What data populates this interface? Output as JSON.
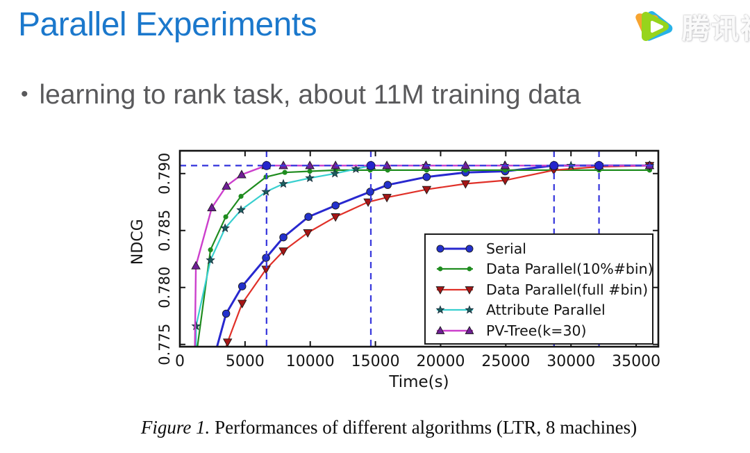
{
  "slide": {
    "title": "Parallel Experiments",
    "bullet_marker": "•",
    "bullet_text": "learning to rank task, about 11M training data",
    "caption_prefix": "Figure 1.",
    "caption_text": " Performances of different algorithms (LTR, 8 machines)",
    "colors": {
      "title_accent": "#1b78cc",
      "bullet_text": "#59595b"
    }
  },
  "watermark": {
    "brand_text": "腾讯视频",
    "logo_colors": {
      "orange": "#f7a430",
      "blue": "#28b2e8",
      "green": "#97d41c",
      "play": "#ffffff"
    }
  },
  "chart_data": {
    "type": "line",
    "title": "",
    "xlabel": "Time(s)",
    "ylabel": "NDCG",
    "xlim": [
      0,
      36700
    ],
    "ylim": [
      0.7748,
      0.792
    ],
    "grid": false,
    "x_ticks": {
      "values": [
        0,
        5000,
        10000,
        15000,
        20000,
        25000,
        30000,
        35000
      ],
      "labels": [
        "0",
        "5000",
        "10000",
        "15000",
        "20000",
        "25000",
        "30000",
        "35000"
      ]
    },
    "y_ticks": {
      "values": [
        0.775,
        0.78,
        0.785,
        0.79
      ],
      "labels": [
        "0.775",
        "0.780",
        "0.785",
        "0.790"
      ]
    },
    "target_line": {
      "y": 0.7907,
      "color": "#3c3cdd",
      "dash": [
        9,
        7
      ],
      "width": 2.3
    },
    "convergence_lines": {
      "x": [
        6650,
        14650,
        28700,
        32150
      ],
      "color": "#3c3cdd",
      "dash": [
        9,
        7
      ],
      "width": 2.3
    },
    "annotation_dots": {
      "x": [
        6650,
        14650,
        28700,
        32150
      ],
      "y": 0.7907,
      "color": "#2525cc",
      "radius": 6
    },
    "legend": {
      "position": "lower-right"
    },
    "series": [
      {
        "name": "Serial",
        "color": "#2828cf",
        "marker": "circle",
        "marker_fill": "#2331cc",
        "line_width": 3.0,
        "marker_skip_first": 1,
        "points": [
          [
            2850,
            0.7748
          ],
          [
            3550,
            0.7777
          ],
          [
            4780,
            0.7801
          ],
          [
            6610,
            0.7826
          ],
          [
            7940,
            0.7844
          ],
          [
            9860,
            0.7862
          ],
          [
            11940,
            0.7872
          ],
          [
            14600,
            0.7884
          ],
          [
            15940,
            0.789
          ],
          [
            18930,
            0.7897
          ],
          [
            21910,
            0.7901
          ],
          [
            24950,
            0.7902
          ],
          [
            28680,
            0.7907
          ],
          [
            32150,
            0.7907
          ],
          [
            36030,
            0.7907
          ]
        ]
      },
      {
        "name": "Data Parallel(10%#bin)",
        "color": "#1f8c1f",
        "marker": "dot",
        "marker_fill": "#1f8c1f",
        "line_width": 2.2,
        "marker_skip_first": 1,
        "points": [
          [
            1350,
            0.7748
          ],
          [
            2350,
            0.7833
          ],
          [
            3520,
            0.7862
          ],
          [
            4690,
            0.788
          ],
          [
            6610,
            0.7897
          ],
          [
            8050,
            0.7901
          ],
          [
            9970,
            0.7902
          ],
          [
            11940,
            0.7903
          ],
          [
            14600,
            0.7903
          ],
          [
            15940,
            0.7903
          ],
          [
            18930,
            0.7903
          ],
          [
            21910,
            0.7903
          ],
          [
            24950,
            0.7903
          ],
          [
            28680,
            0.7903
          ],
          [
            32150,
            0.7903
          ],
          [
            36030,
            0.7903
          ]
        ]
      },
      {
        "name": "Data Parallel(full #bin)",
        "color": "#e03028",
        "marker": "triangle-down",
        "marker_fill": "#a51515",
        "line_width": 2.2,
        "marker_skip_first": 1,
        "points": [
          [
            3550,
            0.7748
          ],
          [
            3660,
            0.7752
          ],
          [
            4780,
            0.7786
          ],
          [
            6610,
            0.7816
          ],
          [
            7940,
            0.7832
          ],
          [
            9810,
            0.7848
          ],
          [
            11940,
            0.7862
          ],
          [
            14440,
            0.7875
          ],
          [
            15880,
            0.7879
          ],
          [
            18930,
            0.7886
          ],
          [
            21910,
            0.7891
          ],
          [
            24950,
            0.7894
          ],
          [
            28680,
            0.7903
          ],
          [
            32150,
            0.7906
          ],
          [
            36030,
            0.7907
          ]
        ]
      },
      {
        "name": "Attribute Parallel",
        "color": "#38cfcf",
        "marker": "star",
        "marker_fill": "#1d5c5c",
        "line_width": 2.2,
        "marker_skip_first": 1,
        "points": [
          [
            1240,
            0.7748
          ],
          [
            1240,
            0.7766
          ],
          [
            2350,
            0.7824
          ],
          [
            3470,
            0.7852
          ],
          [
            4690,
            0.7868
          ],
          [
            6610,
            0.7884
          ],
          [
            7940,
            0.7891
          ],
          [
            9970,
            0.7896
          ],
          [
            11890,
            0.79
          ],
          [
            13500,
            0.7904
          ],
          [
            14660,
            0.7907
          ],
          [
            18900,
            0.7907
          ],
          [
            24900,
            0.7907
          ],
          [
            30000,
            0.7907
          ],
          [
            36030,
            0.7907
          ]
        ]
      },
      {
        "name": "PV-Tree(k=30)",
        "color": "#cc3fcc",
        "marker": "triangle-up",
        "marker_fill": "#6f1f96",
        "line_width": 2.4,
        "marker_skip_first": 1,
        "points": [
          [
            1150,
            0.7748
          ],
          [
            1230,
            0.7819
          ],
          [
            2450,
            0.787
          ],
          [
            3570,
            0.7889
          ],
          [
            4740,
            0.7899
          ],
          [
            6610,
            0.7907
          ],
          [
            7940,
            0.7907
          ],
          [
            9970,
            0.7907
          ],
          [
            11940,
            0.7907
          ],
          [
            14660,
            0.7907
          ],
          [
            15880,
            0.7907
          ],
          [
            18870,
            0.7907
          ],
          [
            21910,
            0.7907
          ],
          [
            24950,
            0.7907
          ],
          [
            28680,
            0.7907
          ],
          [
            32150,
            0.7907
          ],
          [
            36030,
            0.7907
          ]
        ]
      }
    ]
  }
}
